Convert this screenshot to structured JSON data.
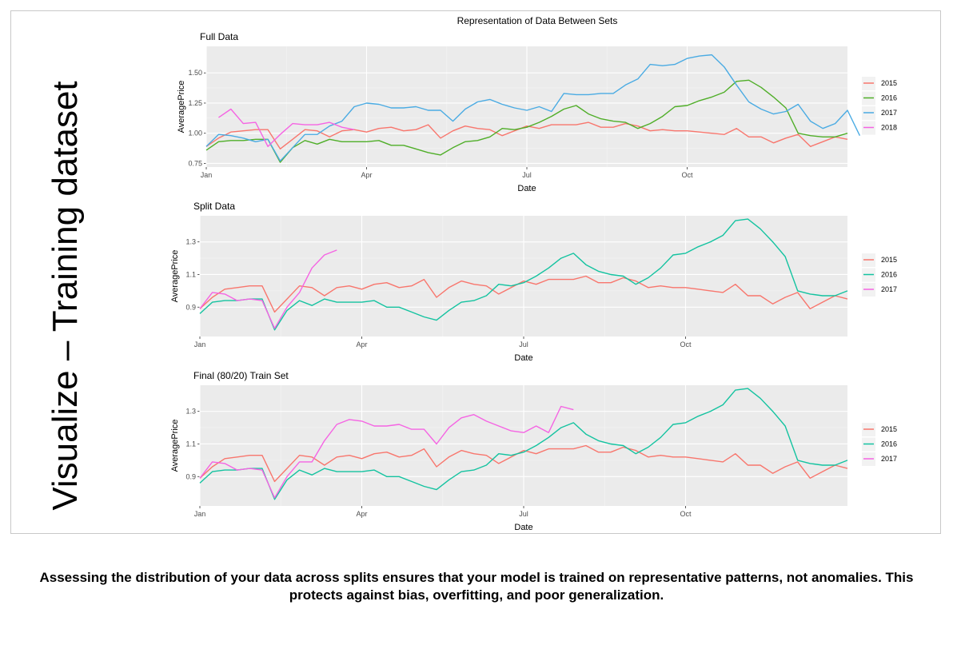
{
  "side_label": "Visualize – Training dataset",
  "caption": "Assessing the distribution of your data across splits ensures that your model is trained on representative patterns, not anomalies. This protects against bias, overfitting, and poor generalization.",
  "figure_title": "Representation of Data Between Sets",
  "colors": {
    "2015": "#F8766D",
    "2016_full": "#4FAE28",
    "2016": "#14C3A0",
    "2017_full": "#4AABE3",
    "2017": "#F564E3",
    "2018": "#F564E3",
    "panel_bg": "#EBEBEB",
    "grid": "#FFFFFF"
  },
  "chart_data": [
    {
      "type": "line",
      "title": "Full Data",
      "xlabel": "Date",
      "ylabel": "AveragePrice",
      "xlim": [
        0,
        52
      ],
      "ylim": [
        0.72,
        1.72
      ],
      "x_ticks": [
        {
          "label": "Jan",
          "x": 0
        },
        {
          "label": "Apr",
          "x": 13
        },
        {
          "label": "Jul",
          "x": 26
        },
        {
          "label": "Oct",
          "x": 39
        }
      ],
      "y_ticks": [
        {
          "label": "0.75",
          "y": 0.75
        },
        {
          "label": "1.00",
          "y": 1.0
        },
        {
          "label": "1.25",
          "y": 1.25
        },
        {
          "label": "1.50",
          "y": 1.5
        }
      ],
      "grid": true,
      "legend_position": "right",
      "legend": [
        "2015",
        "2016",
        "2017",
        "2018"
      ],
      "series": [
        {
          "name": "2015",
          "color_key": "2015",
          "x": [
            0,
            1,
            2,
            3,
            4,
            5,
            6,
            7,
            8,
            9,
            10,
            11,
            12,
            13,
            14,
            15,
            16,
            17,
            18,
            19,
            20,
            21,
            22,
            23,
            24,
            25,
            26,
            27,
            28,
            29,
            30,
            31,
            32,
            33,
            34,
            35,
            36,
            37,
            38,
            39,
            40,
            41,
            42,
            43,
            44,
            45,
            46,
            47,
            48,
            49,
            50,
            51,
            52
          ],
          "y": [
            0.89,
            0.96,
            1.01,
            1.02,
            1.03,
            1.03,
            0.87,
            0.95,
            1.03,
            1.02,
            0.97,
            1.02,
            1.03,
            1.01,
            1.04,
            1.05,
            1.02,
            1.03,
            1.07,
            0.96,
            1.02,
            1.06,
            1.04,
            1.03,
            0.98,
            1.02,
            1.06,
            1.04,
            1.07,
            1.07,
            1.07,
            1.09,
            1.05,
            1.05,
            1.08,
            1.06,
            1.02,
            1.03,
            1.02,
            1.02,
            1.01,
            1.0,
            0.99,
            1.04,
            0.97,
            0.97,
            0.92,
            0.96,
            0.99,
            0.89,
            0.93,
            0.97,
            0.95
          ]
        },
        {
          "name": "2016",
          "color_key": "2016_full",
          "x": [
            0,
            1,
            2,
            3,
            4,
            5,
            6,
            7,
            8,
            9,
            10,
            11,
            12,
            13,
            14,
            15,
            16,
            17,
            18,
            19,
            20,
            21,
            22,
            23,
            24,
            25,
            26,
            27,
            28,
            29,
            30,
            31,
            32,
            33,
            34,
            35,
            36,
            37,
            38,
            39,
            40,
            41,
            42,
            43,
            44,
            45,
            46,
            47,
            48,
            49,
            50,
            51,
            52
          ],
          "y": [
            0.86,
            0.93,
            0.94,
            0.94,
            0.95,
            0.95,
            0.76,
            0.88,
            0.94,
            0.91,
            0.95,
            0.93,
            0.93,
            0.93,
            0.94,
            0.9,
            0.9,
            0.87,
            0.84,
            0.82,
            0.88,
            0.93,
            0.94,
            0.97,
            1.04,
            1.03,
            1.05,
            1.09,
            1.14,
            1.2,
            1.23,
            1.16,
            1.12,
            1.1,
            1.09,
            1.04,
            1.08,
            1.14,
            1.22,
            1.23,
            1.27,
            1.3,
            1.34,
            1.43,
            1.44,
            1.38,
            1.3,
            1.21,
            1.0,
            0.98,
            0.97,
            0.97,
            1.0
          ]
        },
        {
          "name": "2017",
          "color_key": "2017_full",
          "x": [
            0,
            1,
            2,
            3,
            4,
            5,
            6,
            7,
            8,
            9,
            10,
            11,
            12,
            13,
            14,
            15,
            16,
            17,
            18,
            19,
            20,
            21,
            22,
            23,
            24,
            25,
            26,
            27,
            28,
            29,
            30,
            31,
            32,
            33,
            34,
            35,
            36,
            37,
            38,
            39,
            40,
            41,
            42,
            43,
            44,
            45,
            46,
            47,
            48,
            49,
            50,
            51,
            52,
            53
          ],
          "y": [
            0.89,
            0.99,
            0.98,
            0.96,
            0.93,
            0.95,
            0.77,
            0.88,
            0.99,
            0.99,
            1.06,
            1.1,
            1.22,
            1.25,
            1.24,
            1.21,
            1.21,
            1.22,
            1.19,
            1.19,
            1.1,
            1.2,
            1.26,
            1.28,
            1.24,
            1.21,
            1.19,
            1.22,
            1.18,
            1.33,
            1.32,
            1.32,
            1.33,
            1.33,
            1.4,
            1.45,
            1.57,
            1.56,
            1.57,
            1.62,
            1.64,
            1.65,
            1.55,
            1.4,
            1.26,
            1.2,
            1.16,
            1.18,
            1.24,
            1.1,
            1.04,
            1.08,
            1.19,
            0.98
          ]
        },
        {
          "name": "2018",
          "color_key": "2018",
          "x": [
            1,
            2,
            3,
            4,
            5,
            6,
            7,
            8,
            9,
            10,
            11,
            12
          ],
          "y": [
            1.13,
            1.2,
            1.08,
            1.09,
            0.89,
            0.99,
            1.08,
            1.07,
            1.07,
            1.09,
            1.05,
            1.03
          ]
        }
      ]
    },
    {
      "type": "line",
      "title": "Split Data",
      "xlabel": "Date",
      "ylabel": "AveragePrice",
      "xlim": [
        0,
        52
      ],
      "ylim": [
        0.72,
        1.46
      ],
      "x_ticks": [
        {
          "label": "Jan",
          "x": 0
        },
        {
          "label": "Apr",
          "x": 13
        },
        {
          "label": "Jul",
          "x": 26
        },
        {
          "label": "Oct",
          "x": 39
        }
      ],
      "y_ticks": [
        {
          "label": "0.9",
          "y": 0.9
        },
        {
          "label": "1.1",
          "y": 1.1
        },
        {
          "label": "1.3",
          "y": 1.3
        }
      ],
      "grid": true,
      "legend_position": "right",
      "legend": [
        "2015",
        "2016",
        "2017"
      ],
      "series": [
        {
          "name": "2015",
          "color_key": "2015",
          "x": [
            0,
            1,
            2,
            3,
            4,
            5,
            6,
            7,
            8,
            9,
            10,
            11,
            12,
            13,
            14,
            15,
            16,
            17,
            18,
            19,
            20,
            21,
            22,
            23,
            24,
            25,
            26,
            27,
            28,
            29,
            30,
            31,
            32,
            33,
            34,
            35,
            36,
            37,
            38,
            39,
            40,
            41,
            42,
            43,
            44,
            45,
            46,
            47,
            48,
            49,
            50,
            51,
            52
          ],
          "y": [
            0.89,
            0.96,
            1.01,
            1.02,
            1.03,
            1.03,
            0.87,
            0.95,
            1.03,
            1.02,
            0.97,
            1.02,
            1.03,
            1.01,
            1.04,
            1.05,
            1.02,
            1.03,
            1.07,
            0.96,
            1.02,
            1.06,
            1.04,
            1.03,
            0.98,
            1.02,
            1.06,
            1.04,
            1.07,
            1.07,
            1.07,
            1.09,
            1.05,
            1.05,
            1.08,
            1.06,
            1.02,
            1.03,
            1.02,
            1.02,
            1.01,
            1.0,
            0.99,
            1.04,
            0.97,
            0.97,
            0.92,
            0.96,
            0.99,
            0.89,
            0.93,
            0.97,
            0.95
          ]
        },
        {
          "name": "2016",
          "color_key": "2016",
          "x": [
            0,
            1,
            2,
            3,
            4,
            5,
            6,
            7,
            8,
            9,
            10,
            11,
            12,
            13,
            14,
            15,
            16,
            17,
            18,
            19,
            20,
            21,
            22,
            23,
            24,
            25,
            26,
            27,
            28,
            29,
            30,
            31,
            32,
            33,
            34,
            35,
            36,
            37,
            38,
            39,
            40,
            41,
            42,
            43,
            44,
            45,
            46,
            47,
            48,
            49,
            50,
            51,
            52
          ],
          "y": [
            0.86,
            0.93,
            0.94,
            0.94,
            0.95,
            0.95,
            0.76,
            0.88,
            0.94,
            0.91,
            0.95,
            0.93,
            0.93,
            0.93,
            0.94,
            0.9,
            0.9,
            0.87,
            0.84,
            0.82,
            0.88,
            0.93,
            0.94,
            0.97,
            1.04,
            1.03,
            1.05,
            1.09,
            1.14,
            1.2,
            1.23,
            1.16,
            1.12,
            1.1,
            1.09,
            1.04,
            1.08,
            1.14,
            1.22,
            1.23,
            1.27,
            1.3,
            1.34,
            1.43,
            1.44,
            1.38,
            1.3,
            1.21,
            1.0,
            0.98,
            0.97,
            0.97,
            1.0
          ]
        },
        {
          "name": "2017",
          "color_key": "2017",
          "x": [
            0,
            1,
            2,
            3,
            4,
            5,
            6,
            7,
            8,
            9,
            10,
            11
          ],
          "y": [
            0.89,
            0.99,
            0.98,
            0.94,
            0.95,
            0.94,
            0.77,
            0.9,
            0.99,
            1.14,
            1.22,
            1.25
          ]
        }
      ]
    },
    {
      "type": "line",
      "title": "Final (80/20) Train Set",
      "xlabel": "Date",
      "ylabel": "AveragePrice",
      "xlim": [
        0,
        52
      ],
      "ylim": [
        0.72,
        1.46
      ],
      "x_ticks": [
        {
          "label": "Jan",
          "x": 0
        },
        {
          "label": "Apr",
          "x": 13
        },
        {
          "label": "Jul",
          "x": 26
        },
        {
          "label": "Oct",
          "x": 39
        }
      ],
      "y_ticks": [
        {
          "label": "0.9",
          "y": 0.9
        },
        {
          "label": "1.1",
          "y": 1.1
        },
        {
          "label": "1.3",
          "y": 1.3
        }
      ],
      "grid": true,
      "legend_position": "right",
      "legend": [
        "2015",
        "2016",
        "2017"
      ],
      "series": [
        {
          "name": "2015",
          "color_key": "2015",
          "x": [
            0,
            1,
            2,
            3,
            4,
            5,
            6,
            7,
            8,
            9,
            10,
            11,
            12,
            13,
            14,
            15,
            16,
            17,
            18,
            19,
            20,
            21,
            22,
            23,
            24,
            25,
            26,
            27,
            28,
            29,
            30,
            31,
            32,
            33,
            34,
            35,
            36,
            37,
            38,
            39,
            40,
            41,
            42,
            43,
            44,
            45,
            46,
            47,
            48,
            49,
            50,
            51,
            52
          ],
          "y": [
            0.89,
            0.96,
            1.01,
            1.02,
            1.03,
            1.03,
            0.87,
            0.95,
            1.03,
            1.02,
            0.97,
            1.02,
            1.03,
            1.01,
            1.04,
            1.05,
            1.02,
            1.03,
            1.07,
            0.96,
            1.02,
            1.06,
            1.04,
            1.03,
            0.98,
            1.02,
            1.06,
            1.04,
            1.07,
            1.07,
            1.07,
            1.09,
            1.05,
            1.05,
            1.08,
            1.06,
            1.02,
            1.03,
            1.02,
            1.02,
            1.01,
            1.0,
            0.99,
            1.04,
            0.97,
            0.97,
            0.92,
            0.96,
            0.99,
            0.89,
            0.93,
            0.97,
            0.95
          ]
        },
        {
          "name": "2016",
          "color_key": "2016",
          "x": [
            0,
            1,
            2,
            3,
            4,
            5,
            6,
            7,
            8,
            9,
            10,
            11,
            12,
            13,
            14,
            15,
            16,
            17,
            18,
            19,
            20,
            21,
            22,
            23,
            24,
            25,
            26,
            27,
            28,
            29,
            30,
            31,
            32,
            33,
            34,
            35,
            36,
            37,
            38,
            39,
            40,
            41,
            42,
            43,
            44,
            45,
            46,
            47,
            48,
            49,
            50,
            51,
            52
          ],
          "y": [
            0.86,
            0.93,
            0.94,
            0.94,
            0.95,
            0.95,
            0.76,
            0.88,
            0.94,
            0.91,
            0.95,
            0.93,
            0.93,
            0.93,
            0.94,
            0.9,
            0.9,
            0.87,
            0.84,
            0.82,
            0.88,
            0.93,
            0.94,
            0.97,
            1.04,
            1.03,
            1.05,
            1.09,
            1.14,
            1.2,
            1.23,
            1.16,
            1.12,
            1.1,
            1.09,
            1.04,
            1.08,
            1.14,
            1.22,
            1.23,
            1.27,
            1.3,
            1.34,
            1.43,
            1.44,
            1.38,
            1.3,
            1.21,
            1.0,
            0.98,
            0.97,
            0.97,
            1.0
          ]
        },
        {
          "name": "2017",
          "color_key": "2017",
          "x": [
            0,
            1,
            2,
            3,
            4,
            5,
            6,
            7,
            8,
            9,
            10,
            11,
            12,
            13,
            14,
            15,
            16,
            17,
            18,
            19,
            20,
            21,
            22,
            23,
            24,
            25,
            26,
            27,
            28,
            29,
            30
          ],
          "y": [
            0.89,
            0.99,
            0.98,
            0.94,
            0.95,
            0.94,
            0.77,
            0.9,
            0.99,
            0.99,
            1.12,
            1.22,
            1.25,
            1.24,
            1.21,
            1.21,
            1.22,
            1.19,
            1.19,
            1.1,
            1.2,
            1.26,
            1.28,
            1.24,
            1.21,
            1.18,
            1.17,
            1.21,
            1.17,
            1.33,
            1.31
          ]
        }
      ]
    }
  ]
}
